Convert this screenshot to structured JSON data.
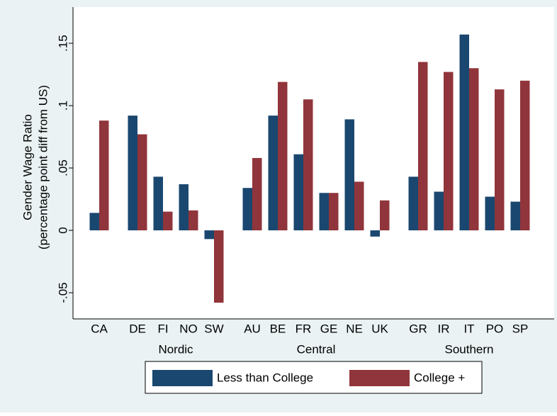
{
  "chart_data": {
    "type": "bar",
    "ylabel": [
      "Gender Wage Ratio",
      "(percentage point diff from US)"
    ],
    "categories": [
      "CA",
      "DE",
      "FI",
      "NO",
      "SW",
      "AU",
      "BE",
      "FR",
      "GE",
      "NE",
      "UK",
      "GR",
      "IR",
      "IT",
      "PO",
      "SP"
    ],
    "category_groups": [
      null,
      "Nordic",
      "Nordic",
      "Nordic",
      "Nordic",
      "Central",
      "Central",
      "Central",
      "Central",
      "Central",
      "Central",
      "Southern",
      "Southern",
      "Southern",
      "Southern",
      "Southern"
    ],
    "series": [
      {
        "name": "Less than College",
        "color": "#1a476f",
        "values": [
          0.014,
          0.092,
          0.043,
          0.037,
          -0.007,
          0.034,
          0.092,
          0.061,
          0.03,
          0.089,
          -0.005,
          0.043,
          0.031,
          0.157,
          0.027,
          0.023
        ]
      },
      {
        "name": "College +",
        "color": "#90353b",
        "values": [
          0.088,
          0.077,
          0.015,
          0.016,
          -0.058,
          0.058,
          0.119,
          0.105,
          0.03,
          0.039,
          0.024,
          0.135,
          0.127,
          0.13,
          0.113,
          0.12
        ]
      }
    ],
    "ylim": [
      -0.071,
      0.179
    ],
    "yticks": [
      {
        "value": -0.05,
        "label": "-.05"
      },
      0,
      {
        "value": 0.05,
        "label": ".05"
      },
      {
        "value": 0.1,
        "label": ".1"
      },
      {
        "value": 0.15,
        "label": ".15"
      }
    ],
    "grid": false,
    "legend": "bottom"
  }
}
